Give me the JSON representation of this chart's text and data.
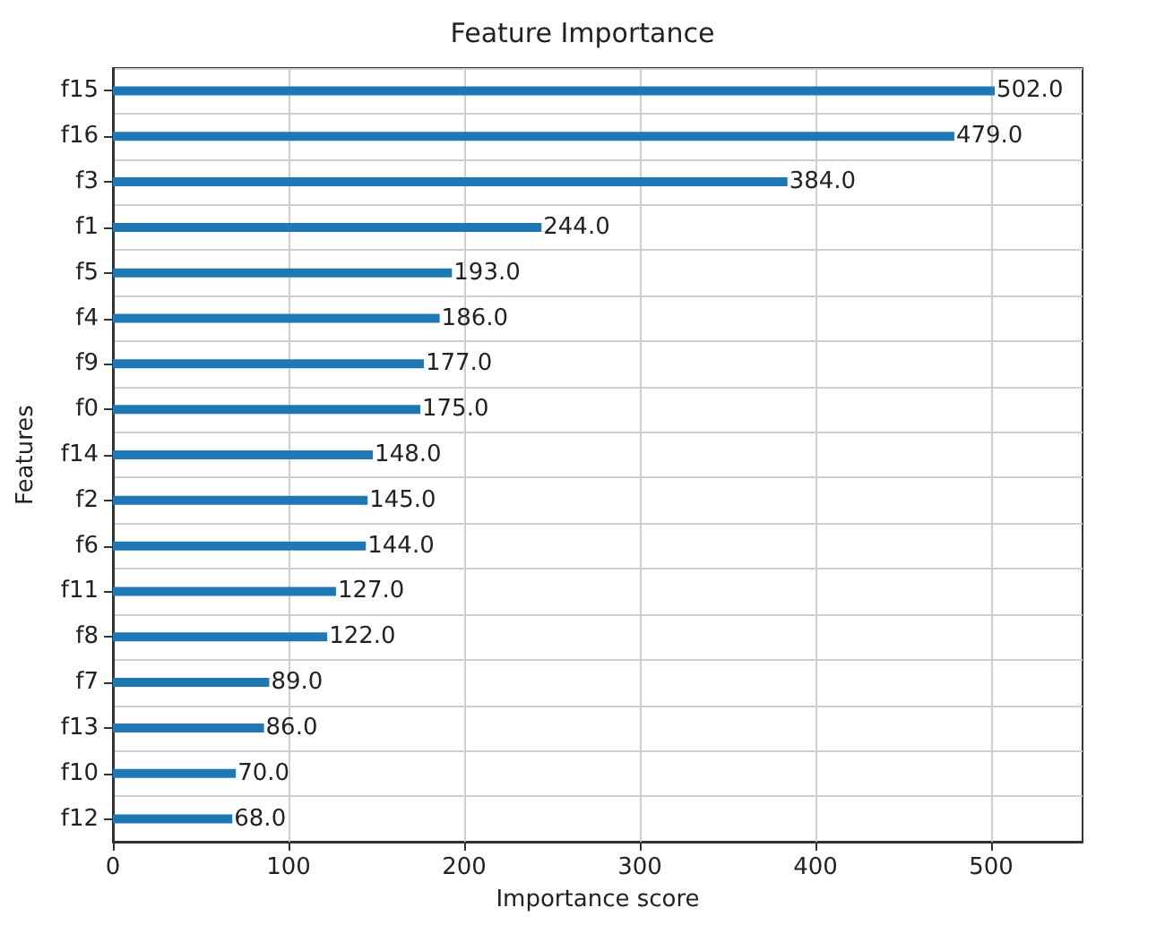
{
  "chart_data": {
    "type": "bar",
    "orientation": "horizontal",
    "title": "Feature Importance",
    "xlabel": "Importance score",
    "ylabel": "Features",
    "categories": [
      "f15",
      "f16",
      "f3",
      "f1",
      "f5",
      "f4",
      "f9",
      "f0",
      "f14",
      "f2",
      "f6",
      "f11",
      "f8",
      "f7",
      "f13",
      "f10",
      "f12"
    ],
    "values": [
      502,
      479,
      384,
      244,
      193,
      186,
      177,
      175,
      148,
      145,
      144,
      127,
      122,
      89,
      86,
      70,
      68
    ],
    "value_labels": [
      "502.0",
      "479.0",
      "384.0",
      "244.0",
      "193.0",
      "186.0",
      "177.0",
      "175.0",
      "148.0",
      "145.0",
      "144.0",
      "127.0",
      "122.0",
      "89.0",
      "86.0",
      "70.0",
      "68.0"
    ],
    "color": "#1f77b4",
    "xlim": [
      0,
      552
    ],
    "xticks": [
      0,
      100,
      200,
      300,
      400,
      500
    ],
    "grid": true
  }
}
